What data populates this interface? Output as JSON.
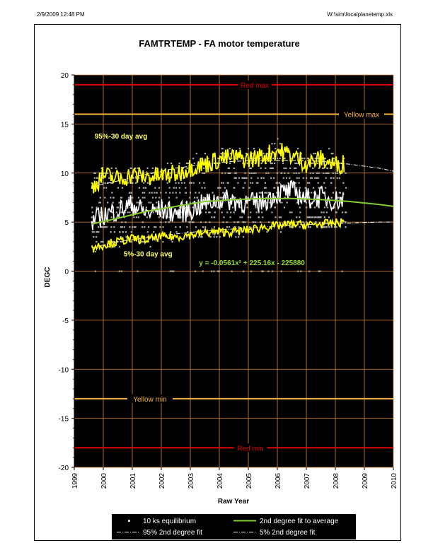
{
  "header": {
    "datetime": "2/9/2009 12:48 PM",
    "filepath": "W:\\sim\\focalplanetemp.xls"
  },
  "chart_data": {
    "type": "scatter",
    "title": "FAMTRTEMP  -  FA motor temperature",
    "xlabel": "Raw Year",
    "ylabel": "DEGC",
    "xlim": [
      1999,
      2010
    ],
    "ylim": [
      -20,
      20
    ],
    "xticks": [
      1999,
      2000,
      2001,
      2002,
      2003,
      2004,
      2005,
      2006,
      2007,
      2008,
      2009,
      2010
    ],
    "xtick_labels": [
      "1999",
      "2000",
      "2001",
      "2002",
      "2003",
      "2004",
      "2005",
      "2006",
      "2007",
      "2008",
      "2009",
      "2010"
    ],
    "yticks": [
      -20,
      -15,
      -10,
      -5,
      0,
      5,
      10,
      15,
      20
    ],
    "ytick_labels": [
      "-20",
      "-15",
      "-10",
      "-5",
      "0",
      "5",
      "10",
      "15",
      "20"
    ],
    "grid": true,
    "background": "#000000",
    "limits": [
      {
        "label": "Red max",
        "value": 19,
        "color": "#dd0000"
      },
      {
        "label": "Yellow max",
        "value": 16,
        "color": "#f5b342"
      },
      {
        "label": "Yellow min",
        "value": -13,
        "color": "#f5b342"
      },
      {
        "label": "Red min",
        "value": -18,
        "color": "#dd0000"
      }
    ],
    "annotations": [
      {
        "text": "95%-30 day avg",
        "x": 1999.7,
        "y": 13.5,
        "color": "#ffff66"
      },
      {
        "text": "5%-30 day avg",
        "x": 2000.7,
        "y": 1.5,
        "color": "#ffff66"
      },
      {
        "text": "y = -0.0561x² + 225.16x - 225880",
        "x": 2003.3,
        "y": 0.6,
        "color": "#99dd33"
      }
    ],
    "fit_coefficients": {
      "a": -0.0561,
      "b": 225.16,
      "c": -225880
    },
    "series": [
      {
        "name": "10 ks equilibrium",
        "marker": "square",
        "color": "#aaaaaa",
        "x_range": [
          1999.6,
          2008.4
        ],
        "y_range": [
          0,
          13
        ]
      },
      {
        "name": "95%-30 day avg",
        "color": "#ffff00",
        "x": [
          1999.6,
          2000.0,
          2000.5,
          2001.0,
          2001.5,
          2002.0,
          2002.5,
          2003.0,
          2003.5,
          2004.0,
          2004.5,
          2005.0,
          2005.5,
          2006.0,
          2006.5,
          2007.0,
          2007.5,
          2008.0,
          2008.3
        ],
        "y": [
          8.5,
          9.8,
          9.4,
          9.8,
          9.6,
          9.7,
          9.9,
          10.6,
          10.9,
          11.4,
          11.6,
          11.4,
          11.7,
          12.3,
          11.8,
          11.0,
          11.4,
          10.8,
          11.0
        ]
      },
      {
        "name": "5%-30 day avg",
        "color": "#ffff00",
        "x": [
          1999.6,
          2000.0,
          2000.5,
          2001.0,
          2001.5,
          2002.0,
          2002.5,
          2003.0,
          2003.5,
          2004.0,
          2004.5,
          2005.0,
          2005.5,
          2006.0,
          2006.5,
          2007.0,
          2007.5,
          2008.0,
          2008.3
        ],
        "y": [
          2.4,
          2.7,
          3.0,
          3.3,
          3.2,
          3.5,
          3.5,
          3.7,
          3.9,
          4.0,
          4.0,
          4.2,
          4.5,
          4.6,
          4.8,
          4.7,
          4.8,
          4.9,
          5.0
        ]
      },
      {
        "name": "30 day avg",
        "color": "#ffffff",
        "x": [
          1999.6,
          2000.0,
          2000.5,
          2001.0,
          2001.5,
          2002.0,
          2002.5,
          2003.0,
          2003.5,
          2004.0,
          2004.5,
          2005.0,
          2005.5,
          2006.0,
          2006.5,
          2007.0,
          2007.5,
          2008.0,
          2008.3
        ],
        "y": [
          5.0,
          5.7,
          6.2,
          6.8,
          5.9,
          6.3,
          5.9,
          6.2,
          6.9,
          7.3,
          7.2,
          6.9,
          7.1,
          7.9,
          8.2,
          7.4,
          7.6,
          7.2,
          7.3
        ]
      },
      {
        "name": "2nd degree fit to average",
        "color": "#88cc33",
        "x": [
          1999.6,
          2000.5,
          2001.5,
          2002.5,
          2003.5,
          2004.5,
          2005.5,
          2006.5,
          2007.5,
          2008.5,
          2009.5,
          2010.0
        ],
        "y": [
          4.8,
          5.4,
          6.1,
          6.6,
          7.1,
          7.3,
          7.4,
          7.4,
          7.3,
          7.1,
          6.8,
          6.6
        ]
      },
      {
        "name": "95% 2nd degree fit",
        "color": "#ffffff",
        "x": [
          1999.6,
          2000.5,
          2001.5,
          2002.5,
          2003.5,
          2004.5,
          2005.5,
          2006.5,
          2007.5,
          2008.5,
          2009.5,
          2010.0
        ],
        "y": [
          8.6,
          9.2,
          9.9,
          10.5,
          10.9,
          11.2,
          11.3,
          11.3,
          11.2,
          10.9,
          10.5,
          10.2
        ]
      },
      {
        "name": "5% 2nd degree fit",
        "color": "#ffffff",
        "x": [
          1999.6,
          2000.5,
          2001.5,
          2002.5,
          2003.5,
          2004.5,
          2005.5,
          2006.5,
          2007.5,
          2008.5,
          2009.5,
          2010.0
        ],
        "y": [
          2.4,
          3.0,
          3.4,
          3.8,
          4.1,
          4.3,
          4.5,
          4.7,
          4.8,
          4.9,
          5.0,
          5.0
        ]
      }
    ],
    "legend": {
      "placement": "bottom",
      "entries": [
        "10 ks equilibrium",
        "2nd degree fit to average",
        "95% 2nd degree fit",
        "5% 2nd degree fit"
      ]
    }
  }
}
